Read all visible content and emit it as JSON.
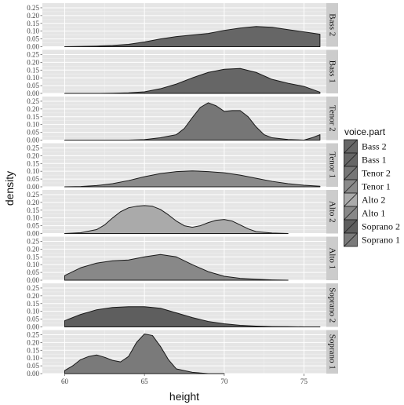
{
  "chart_data": {
    "type": "area",
    "xlabel": "height",
    "ylabel": "density",
    "xlim": [
      58.6,
      76.4
    ],
    "ylim": [
      0,
      0.28
    ],
    "x_ticks": [
      60,
      65,
      70,
      75
    ],
    "y_ticks": [
      0,
      0.05,
      0.1,
      0.15,
      0.2,
      0.25
    ],
    "y_tick_labels": [
      "0.00",
      "0.05",
      "0.10",
      "0.15",
      "0.20",
      "0.25"
    ],
    "grid": true,
    "legend": {
      "title": "voice.part",
      "placement": "right",
      "entries": [
        "Bass 2",
        "Bass 1",
        "Tenor 2",
        "Tenor 1",
        "Alto 2",
        "Alto 1",
        "Soprano 2",
        "Soprano 1"
      ]
    },
    "series": [
      {
        "name": "Bass 2",
        "color": "#666666",
        "x": [
          60,
          61,
          62,
          63,
          64,
          65,
          66,
          67,
          68,
          69,
          70,
          71,
          72,
          73,
          74,
          75,
          76
        ],
        "values": [
          0.0,
          0.002,
          0.004,
          0.008,
          0.015,
          0.03,
          0.05,
          0.065,
          0.075,
          0.085,
          0.105,
          0.12,
          0.13,
          0.125,
          0.11,
          0.095,
          0.08
        ]
      },
      {
        "name": "Bass 1",
        "color": "#666666",
        "x": [
          60,
          61,
          62,
          63,
          64,
          65,
          66,
          67,
          68,
          69,
          70,
          71,
          72,
          73,
          74,
          75,
          76
        ],
        "values": [
          0.0,
          0.0,
          0.0,
          0.001,
          0.004,
          0.01,
          0.03,
          0.06,
          0.1,
          0.135,
          0.155,
          0.16,
          0.135,
          0.09,
          0.065,
          0.045,
          0.008
        ]
      },
      {
        "name": "Tenor 2",
        "color": "#767676",
        "x": [
          60,
          62,
          64,
          65,
          66,
          66.5,
          67,
          67.5,
          68,
          68.5,
          69,
          69.5,
          70,
          70.5,
          71,
          71.5,
          72,
          72.5,
          73,
          74,
          75,
          75.5,
          76
        ],
        "values": [
          0.0,
          0.0,
          0.0,
          0.003,
          0.015,
          0.025,
          0.035,
          0.075,
          0.145,
          0.21,
          0.24,
          0.22,
          0.185,
          0.19,
          0.19,
          0.15,
          0.085,
          0.035,
          0.015,
          0.004,
          0.0,
          0.015,
          0.035
        ]
      },
      {
        "name": "Tenor 1",
        "color": "#8a8a8a",
        "x": [
          60,
          61,
          62,
          63,
          64,
          65,
          66,
          67,
          68,
          69,
          70,
          71,
          72,
          73,
          74,
          75,
          76
        ],
        "values": [
          0.0,
          0.002,
          0.008,
          0.02,
          0.04,
          0.065,
          0.085,
          0.098,
          0.102,
          0.098,
          0.09,
          0.075,
          0.055,
          0.035,
          0.02,
          0.01,
          0.004
        ]
      },
      {
        "name": "Alto 2",
        "color": "#aaaaaa",
        "x": [
          60,
          61,
          62,
          62.5,
          63,
          63.5,
          64,
          64.5,
          65,
          65.5,
          66,
          66.5,
          67,
          67.5,
          68,
          68.5,
          69,
          69.5,
          70,
          70.5,
          71,
          71.5,
          72,
          73,
          74
        ],
        "values": [
          0.0,
          0.005,
          0.025,
          0.055,
          0.1,
          0.14,
          0.165,
          0.175,
          0.18,
          0.175,
          0.155,
          0.12,
          0.08,
          0.05,
          0.04,
          0.05,
          0.07,
          0.085,
          0.09,
          0.08,
          0.055,
          0.03,
          0.012,
          0.003,
          0.0
        ]
      },
      {
        "name": "Alto 1",
        "color": "#888888",
        "x": [
          60,
          61,
          62,
          63,
          64,
          65,
          66,
          67,
          68,
          69,
          70,
          71,
          72,
          73,
          74
        ],
        "values": [
          0.03,
          0.08,
          0.11,
          0.125,
          0.13,
          0.15,
          0.165,
          0.15,
          0.1,
          0.055,
          0.025,
          0.012,
          0.006,
          0.002,
          0.0
        ]
      },
      {
        "name": "Soprano 2",
        "color": "#5e5e5e",
        "x": [
          60,
          61,
          62,
          63,
          64,
          65,
          66,
          67,
          68,
          69,
          70,
          71,
          72,
          73,
          74,
          75,
          76
        ],
        "values": [
          0.04,
          0.08,
          0.11,
          0.125,
          0.13,
          0.13,
          0.12,
          0.09,
          0.06,
          0.035,
          0.02,
          0.01,
          0.005,
          0.002,
          0.001,
          0.0,
          0.0
        ]
      },
      {
        "name": "Soprano 1",
        "color": "#7a7a7a",
        "x": [
          60,
          60.5,
          61,
          61.5,
          62,
          62.5,
          63,
          63.5,
          64,
          64.5,
          65,
          65.5,
          66,
          66.5,
          67,
          68,
          69,
          70
        ],
        "values": [
          0.02,
          0.05,
          0.09,
          0.11,
          0.12,
          0.105,
          0.085,
          0.075,
          0.11,
          0.2,
          0.255,
          0.245,
          0.175,
          0.09,
          0.03,
          0.008,
          0.0,
          0.0
        ]
      }
    ]
  }
}
